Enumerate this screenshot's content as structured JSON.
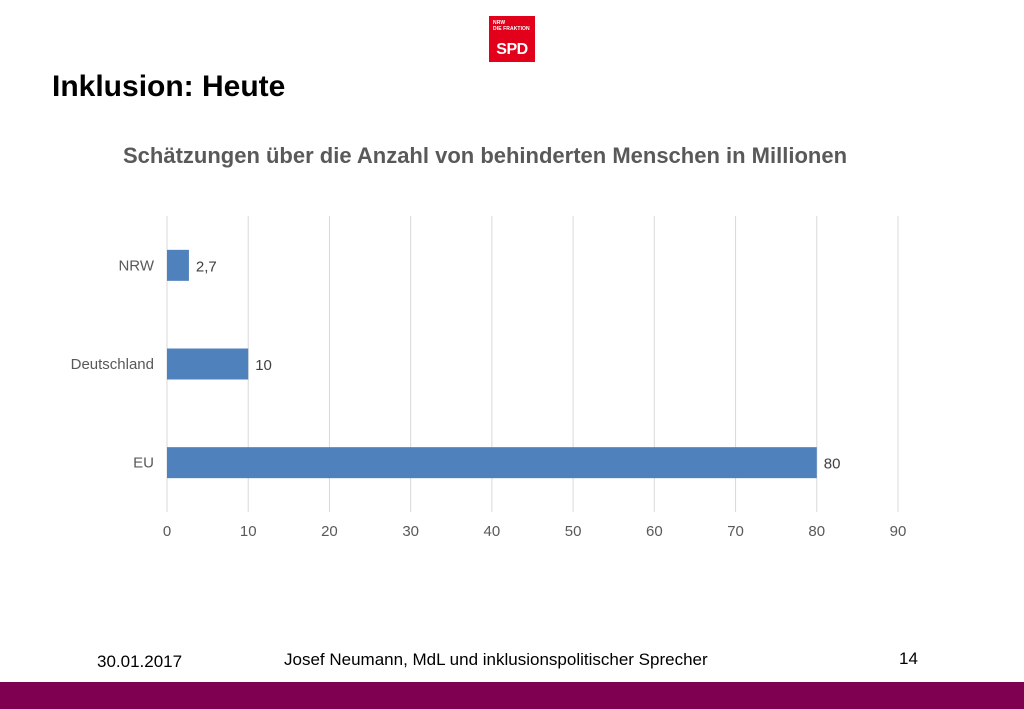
{
  "logo": {
    "small_text": [
      "NRW",
      "DIE FRAKTION"
    ],
    "main_text": "SPD",
    "color": "#e3001b"
  },
  "slide": {
    "title": "Inklusion: Heute"
  },
  "chart_data": {
    "type": "bar",
    "orientation": "horizontal",
    "title": "Schätzungen über die Anzahl von behinderten Menschen in Millionen",
    "categories": [
      "NRW",
      "Deutschland",
      "EU"
    ],
    "values": [
      2.7,
      10,
      80
    ],
    "data_labels": [
      "2,7",
      "10",
      "80"
    ],
    "xticks": [
      "0",
      "10",
      "20",
      "30",
      "40",
      "50",
      "60",
      "70",
      "80",
      "90"
    ],
    "xlim": [
      0,
      90
    ],
    "grid": "vertical",
    "bar_color": "#4f81bd"
  },
  "footer": {
    "date": "30.01.2017",
    "author": "Josef Neumann, MdL und inklusionspolitischer Sprecher",
    "page": "14"
  },
  "bottom_bar_color": "#7f0050"
}
